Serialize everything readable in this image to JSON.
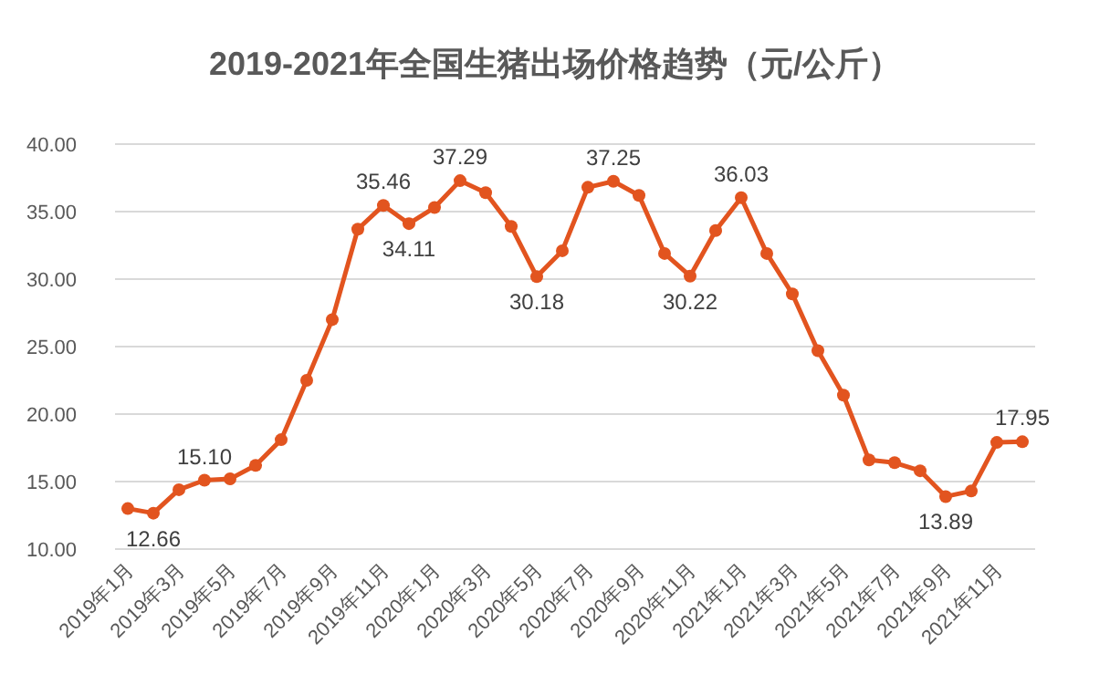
{
  "chart_data": {
    "type": "line",
    "title": "2019-2021年全国生猪出场价格趋势（元/公斤）",
    "categories": [
      "2019年1月",
      null,
      "2019年3月",
      null,
      "2019年5月",
      null,
      "2019年7月",
      null,
      "2019年9月",
      null,
      "2019年11月",
      null,
      "2020年1月",
      null,
      "2020年3月",
      null,
      "2020年5月",
      null,
      "2020年7月",
      null,
      "2020年9月",
      null,
      "2020年11月",
      null,
      "2021年1月",
      null,
      "2021年3月",
      null,
      "2021年5月",
      null,
      "2021年7月",
      null,
      "2021年9月",
      null,
      "2021年11月",
      null
    ],
    "series": [
      {
        "color": "#e2541f",
        "values": [
          13.0,
          12.66,
          14.4,
          15.1,
          15.2,
          16.2,
          18.1,
          22.5,
          27.0,
          33.7,
          35.46,
          34.11,
          35.3,
          37.29,
          36.4,
          33.9,
          30.18,
          32.1,
          36.8,
          37.25,
          36.2,
          31.9,
          30.22,
          33.6,
          36.03,
          31.9,
          28.9,
          24.7,
          21.4,
          16.6,
          16.4,
          15.8,
          13.89,
          14.3,
          17.9,
          17.95
        ],
        "value_labels": [
          null,
          "12.66",
          null,
          "15.10",
          null,
          null,
          null,
          null,
          null,
          null,
          "35.46",
          "34.11",
          null,
          "37.29",
          null,
          null,
          "30.18",
          null,
          null,
          "37.25",
          null,
          null,
          "30.22",
          null,
          "36.03",
          null,
          null,
          null,
          null,
          null,
          null,
          null,
          "13.89",
          null,
          null,
          "17.95"
        ]
      }
    ],
    "ylim": [
      10,
      40
    ],
    "yticks": [
      {
        "value": 10,
        "label": "10.00"
      },
      {
        "value": 15,
        "label": "15.00"
      },
      {
        "value": 20,
        "label": "20.00"
      },
      {
        "value": 25,
        "label": "25.00"
      },
      {
        "value": 30,
        "label": "30.00"
      },
      {
        "value": 35,
        "label": "35.00"
      },
      {
        "value": 40,
        "label": "40.00"
      }
    ],
    "grid": "y",
    "marker": "circle",
    "line_style": "solid"
  }
}
